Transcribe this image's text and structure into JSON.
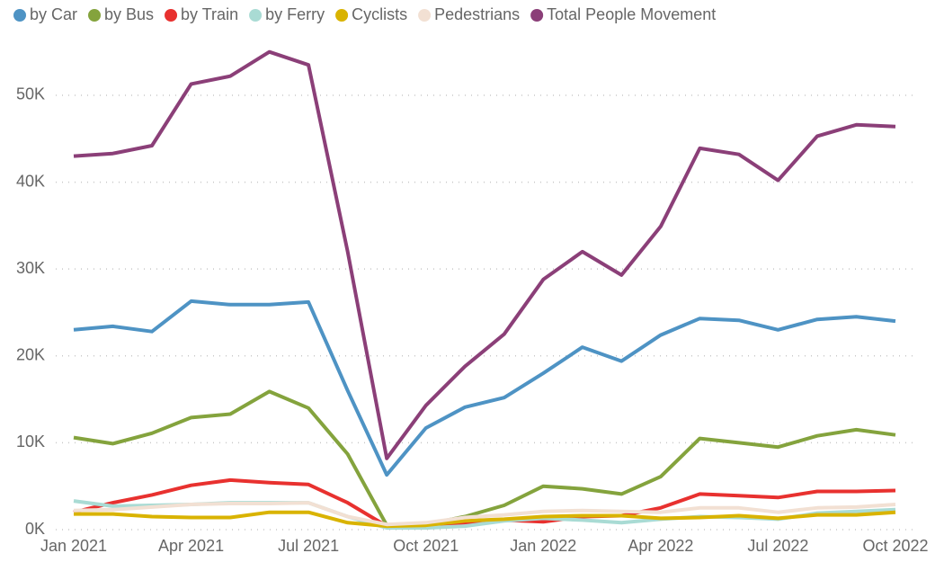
{
  "chart_data": {
    "type": "line",
    "categories": [
      "Jan 2021",
      null,
      null,
      "Apr 2021",
      null,
      null,
      "Jul 2021",
      null,
      null,
      "Oct 2021",
      null,
      null,
      "Jan 2022",
      null,
      null,
      "Apr 2022",
      null,
      null,
      "Jul 2022",
      null,
      null,
      "Oct 2022"
    ],
    "series": [
      {
        "name": "by Car",
        "color": "#4e93c4",
        "values": [
          23000,
          23400,
          22800,
          26300,
          25900,
          25900,
          26200,
          16000,
          6300,
          11700,
          14100,
          15200,
          18000,
          21000,
          19400,
          22400,
          24300,
          24100,
          23000,
          24200,
          24500,
          24000
        ]
      },
      {
        "name": "by Bus",
        "color": "#84a33d",
        "values": [
          10600,
          9900,
          11100,
          12900,
          13300,
          15900,
          14000,
          8700,
          500,
          600,
          1500,
          2800,
          5000,
          4700,
          4100,
          6100,
          10500,
          10000,
          9500,
          10800,
          11500,
          10900
        ]
      },
      {
        "name": "by Train",
        "color": "#e8312f",
        "values": [
          2000,
          3100,
          4000,
          5100,
          5700,
          5400,
          5200,
          3100,
          400,
          500,
          800,
          1100,
          900,
          1500,
          1600,
          2500,
          4100,
          3900,
          3700,
          4400,
          4400,
          4500
        ]
      },
      {
        "name": "by Ferry",
        "color": "#a9dbd4",
        "values": [
          3300,
          2700,
          2800,
          2900,
          3100,
          3100,
          3100,
          1500,
          200,
          200,
          400,
          1000,
          1300,
          1100,
          800,
          1200,
          1500,
          1400,
          1200,
          1900,
          2100,
          2300
        ]
      },
      {
        "name": "Cyclists",
        "color": "#d9b300",
        "values": [
          1800,
          1800,
          1500,
          1400,
          1400,
          2000,
          2000,
          800,
          400,
          500,
          1000,
          1200,
          1500,
          1600,
          1600,
          1300,
          1400,
          1600,
          1300,
          1700,
          1700,
          2000
        ]
      },
      {
        "name": "Pedestrians",
        "color": "#f2e0d3",
        "values": [
          2200,
          2300,
          2600,
          2900,
          3000,
          3000,
          3100,
          1500,
          600,
          800,
          1400,
          1700,
          2100,
          2200,
          2100,
          2000,
          2500,
          2500,
          2000,
          2500,
          2600,
          2900
        ]
      },
      {
        "name": "Total People Movement",
        "color": "#8b3f78",
        "values": [
          43000,
          43300,
          44200,
          51300,
          52200,
          55000,
          53500,
          32000,
          8200,
          14300,
          18800,
          22500,
          28800,
          32000,
          29300,
          34900,
          43900,
          43200,
          40200,
          45300,
          46600,
          46400
        ]
      }
    ],
    "ylim": [
      0,
      56000
    ],
    "yticks": [
      {
        "value": 0,
        "label": "0K"
      },
      {
        "value": 10000,
        "label": "10K"
      },
      {
        "value": 20000,
        "label": "20K"
      },
      {
        "value": 30000,
        "label": "30K"
      },
      {
        "value": 40000,
        "label": "40K"
      },
      {
        "value": 50000,
        "label": "50K"
      }
    ],
    "grid": true
  }
}
